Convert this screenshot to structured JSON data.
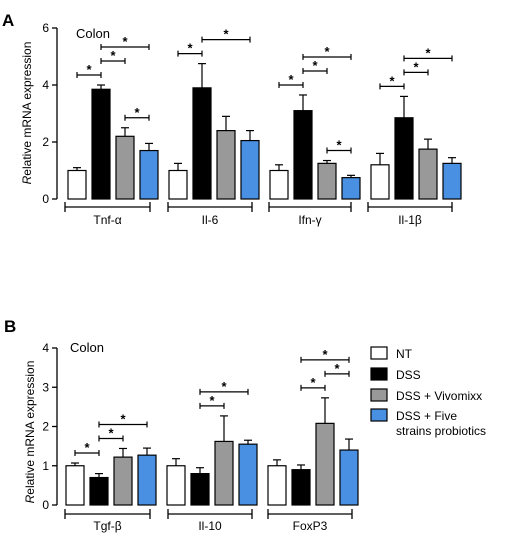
{
  "panels": [
    {
      "letter": "A",
      "tissue": "Colon",
      "ylabel_italic": "R",
      "ylabel_rest": "elative mRNA expression",
      "ylim": [
        0,
        6
      ],
      "yticks": [
        "0",
        "2",
        "4",
        "6"
      ]
    },
    {
      "letter": "B",
      "tissue": "Colon",
      "ylabel_italic": "R",
      "ylabel_rest": "elative mRNA expression",
      "ylim": [
        0,
        4
      ],
      "yticks": [
        "0",
        "1",
        "2",
        "3",
        "4"
      ]
    }
  ],
  "legend": [
    {
      "label": "NT",
      "color": "#ffffff"
    },
    {
      "label": "DSS",
      "color": "#000000"
    },
    {
      "label": "DSS + Vivomixx",
      "color": "#999999"
    },
    {
      "label": "DSS + Five",
      "label_line2": "strains probiotics",
      "color": "#4a90e2"
    }
  ],
  "significance_marker": "*",
  "chart_data": [
    {
      "type": "bar",
      "panel": "A",
      "title": "Colon",
      "ylabel": "Relative mRNA expression",
      "ylim": [
        0,
        6
      ],
      "categories": [
        "Tnf-α",
        "Il-6",
        "Ifn-γ",
        "Il-1β"
      ],
      "series": [
        {
          "name": "NT",
          "values": [
            1.0,
            1.0,
            1.0,
            1.2
          ],
          "errors": [
            0.1,
            0.25,
            0.2,
            0.4
          ],
          "color": "#ffffff"
        },
        {
          "name": "DSS",
          "values": [
            3.85,
            3.9,
            3.1,
            2.85
          ],
          "errors": [
            0.15,
            0.85,
            0.55,
            0.75
          ],
          "color": "#000000"
        },
        {
          "name": "DSS + Vivomixx",
          "values": [
            2.2,
            2.4,
            1.25,
            1.75
          ],
          "errors": [
            0.3,
            0.5,
            0.1,
            0.35
          ],
          "color": "#999999"
        },
        {
          "name": "DSS + Five strains probiotics",
          "values": [
            1.7,
            2.05,
            0.75,
            1.25
          ],
          "errors": [
            0.25,
            0.35,
            0.08,
            0.2
          ],
          "color": "#4a90e2"
        }
      ],
      "significance": [
        {
          "category": 0,
          "pairs": [
            [
              0,
              1
            ],
            [
              1,
              2
            ],
            [
              1,
              3
            ],
            [
              2,
              3
            ]
          ]
        },
        {
          "category": 1,
          "pairs": [
            [
              0,
              1
            ],
            [
              1,
              3
            ]
          ]
        },
        {
          "category": 2,
          "pairs": [
            [
              0,
              1
            ],
            [
              1,
              2
            ],
            [
              1,
              3
            ],
            [
              2,
              3
            ]
          ]
        },
        {
          "category": 3,
          "pairs": [
            [
              0,
              1
            ],
            [
              1,
              2
            ],
            [
              1,
              3
            ]
          ]
        }
      ]
    },
    {
      "type": "bar",
      "panel": "B",
      "title": "Colon",
      "ylabel": "Relative mRNA expression",
      "ylim": [
        0,
        4
      ],
      "categories": [
        "Tgf-β",
        "Il-10",
        "FoxP3"
      ],
      "series": [
        {
          "name": "NT",
          "values": [
            1.0,
            1.0,
            1.0
          ],
          "errors": [
            0.07,
            0.18,
            0.15
          ],
          "color": "#ffffff"
        },
        {
          "name": "DSS",
          "values": [
            0.7,
            0.8,
            0.9
          ],
          "errors": [
            0.1,
            0.15,
            0.12
          ],
          "color": "#000000"
        },
        {
          "name": "DSS + Vivomixx",
          "values": [
            1.22,
            1.62,
            2.08
          ],
          "errors": [
            0.22,
            0.65,
            0.65
          ],
          "color": "#999999"
        },
        {
          "name": "DSS + Five strains probiotics",
          "values": [
            1.27,
            1.55,
            1.4
          ],
          "errors": [
            0.18,
            0.1,
            0.28
          ],
          "color": "#4a90e2"
        }
      ],
      "significance": [
        {
          "category": 0,
          "pairs": [
            [
              0,
              1
            ],
            [
              1,
              2
            ],
            [
              1,
              3
            ]
          ]
        },
        {
          "category": 1,
          "pairs": [
            [
              1,
              2
            ],
            [
              1,
              3
            ]
          ]
        },
        {
          "category": 2,
          "pairs": [
            [
              1,
              2
            ],
            [
              2,
              3
            ],
            [
              1,
              3
            ]
          ]
        }
      ]
    }
  ]
}
